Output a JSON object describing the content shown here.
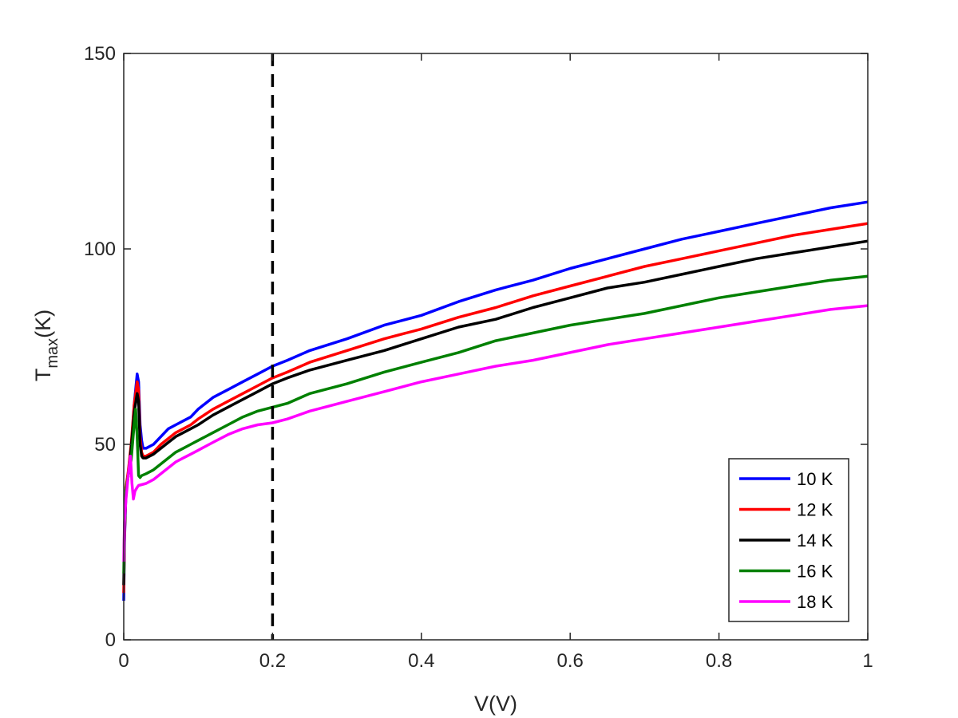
{
  "chart_data": {
    "type": "line",
    "xlabel": "V(V)",
    "ylabel_main": "T",
    "ylabel_sub": "max",
    "ylabel_tail": "(K)",
    "xlim": [
      0,
      1
    ],
    "ylim": [
      0,
      150
    ],
    "xticks": [
      0,
      0.2,
      0.4,
      0.6,
      0.8,
      1
    ],
    "xtick_labels": [
      "0",
      "0.2",
      "0.4",
      "0.6",
      "0.8",
      "1"
    ],
    "yticks": [
      0,
      50,
      100,
      150
    ],
    "ytick_labels": [
      "0",
      "50",
      "100",
      "150"
    ],
    "grid": false,
    "box": true,
    "legend_position": "bottom-right",
    "reference_line": {
      "x": 0.2,
      "style": "dashed",
      "color": "#000000"
    },
    "series": [
      {
        "name": "10 K",
        "color": "#0000ff",
        "x": [
          0,
          0.001,
          0.003,
          0.006,
          0.01,
          0.014,
          0.018,
          0.02,
          0.022,
          0.024,
          0.026,
          0.03,
          0.04,
          0.05,
          0.06,
          0.07,
          0.08,
          0.09,
          0.1,
          0.12,
          0.14,
          0.16,
          0.18,
          0.2,
          0.22,
          0.25,
          0.3,
          0.35,
          0.4,
          0.45,
          0.5,
          0.55,
          0.6,
          0.65,
          0.7,
          0.75,
          0.8,
          0.85,
          0.9,
          0.95,
          1.0
        ],
        "y": [
          10,
          25,
          38,
          42,
          48,
          60,
          68,
          66,
          55,
          51,
          49,
          49,
          50,
          52,
          54,
          55,
          56,
          57,
          59,
          62,
          64,
          66,
          68,
          70,
          71.5,
          74,
          77,
          80.5,
          83,
          86.5,
          89.5,
          92,
          95,
          97.5,
          100,
          102.5,
          104.5,
          106.5,
          108.5,
          110.5,
          112
        ]
      },
      {
        "name": "12 K",
        "color": "#ff0000",
        "x": [
          0,
          0.001,
          0.003,
          0.006,
          0.01,
          0.014,
          0.018,
          0.02,
          0.022,
          0.024,
          0.026,
          0.03,
          0.04,
          0.05,
          0.06,
          0.07,
          0.08,
          0.09,
          0.1,
          0.12,
          0.14,
          0.16,
          0.18,
          0.2,
          0.22,
          0.25,
          0.3,
          0.35,
          0.4,
          0.45,
          0.5,
          0.55,
          0.6,
          0.65,
          0.7,
          0.75,
          0.8,
          0.85,
          0.9,
          0.95,
          1.0
        ],
        "y": [
          12,
          26,
          39,
          43,
          50,
          60,
          66,
          64,
          52,
          48,
          47,
          47,
          48,
          50,
          51.5,
          53,
          54,
          55,
          56.5,
          59,
          61,
          63,
          65,
          67,
          68.5,
          71,
          74,
          77,
          79.5,
          82.5,
          85,
          88,
          90.5,
          93,
          95.5,
          97.5,
          99.5,
          101.5,
          103.5,
          105,
          106.5
        ]
      },
      {
        "name": "14 K",
        "color": "#000000",
        "x": [
          0,
          0.001,
          0.003,
          0.006,
          0.01,
          0.014,
          0.018,
          0.02,
          0.022,
          0.024,
          0.026,
          0.03,
          0.04,
          0.05,
          0.06,
          0.07,
          0.08,
          0.09,
          0.1,
          0.12,
          0.14,
          0.16,
          0.18,
          0.2,
          0.22,
          0.25,
          0.3,
          0.35,
          0.4,
          0.45,
          0.5,
          0.55,
          0.6,
          0.65,
          0.7,
          0.75,
          0.8,
          0.85,
          0.9,
          0.95,
          1.0
        ],
        "y": [
          14,
          27,
          38,
          42,
          49,
          58,
          63,
          61,
          50,
          47,
          46.5,
          46.5,
          47.5,
          49,
          50.5,
          52,
          53,
          54,
          55,
          57.5,
          59.5,
          61.5,
          63.5,
          65.5,
          67,
          69,
          71.5,
          74,
          77,
          80,
          82,
          85,
          87.5,
          90,
          91.5,
          93.5,
          95.5,
          97.5,
          99,
          100.5,
          102
        ]
      },
      {
        "name": "16 K",
        "color": "#008000",
        "x": [
          0,
          0.001,
          0.003,
          0.006,
          0.01,
          0.014,
          0.016,
          0.018,
          0.02,
          0.022,
          0.024,
          0.03,
          0.04,
          0.05,
          0.06,
          0.07,
          0.08,
          0.09,
          0.1,
          0.12,
          0.14,
          0.16,
          0.18,
          0.2,
          0.22,
          0.25,
          0.3,
          0.35,
          0.4,
          0.45,
          0.5,
          0.55,
          0.6,
          0.65,
          0.7,
          0.75,
          0.8,
          0.85,
          0.9,
          0.95,
          1.0
        ],
        "y": [
          17,
          29,
          38,
          42,
          46,
          55,
          59,
          52,
          42,
          41.5,
          42,
          42.5,
          43.5,
          45,
          46.5,
          48,
          49,
          50,
          51,
          53,
          55,
          57,
          58.5,
          59.5,
          60.5,
          63,
          65.5,
          68.5,
          71,
          73.5,
          76.5,
          78.5,
          80.5,
          82,
          83.5,
          85.5,
          87.5,
          89,
          90.5,
          92,
          93
        ]
      },
      {
        "name": "18 K",
        "color": "#ff00ff",
        "x": [
          0,
          0.001,
          0.003,
          0.006,
          0.009,
          0.011,
          0.013,
          0.015,
          0.018,
          0.02,
          0.03,
          0.04,
          0.05,
          0.06,
          0.07,
          0.08,
          0.09,
          0.1,
          0.12,
          0.14,
          0.16,
          0.18,
          0.2,
          0.22,
          0.25,
          0.3,
          0.35,
          0.4,
          0.45,
          0.5,
          0.55,
          0.6,
          0.65,
          0.7,
          0.75,
          0.8,
          0.85,
          0.9,
          0.95,
          1.0
        ],
        "y": [
          20,
          30,
          36,
          42,
          47,
          40,
          36,
          38,
          39,
          39.5,
          40,
          41,
          42.5,
          44,
          45.5,
          46.5,
          47.5,
          48.5,
          50.5,
          52.5,
          54,
          55,
          55.5,
          56.5,
          58.5,
          61,
          63.5,
          66,
          68,
          70,
          71.5,
          73.5,
          75.5,
          77,
          78.5,
          80,
          81.5,
          83,
          84.5,
          85.5
        ]
      }
    ]
  }
}
